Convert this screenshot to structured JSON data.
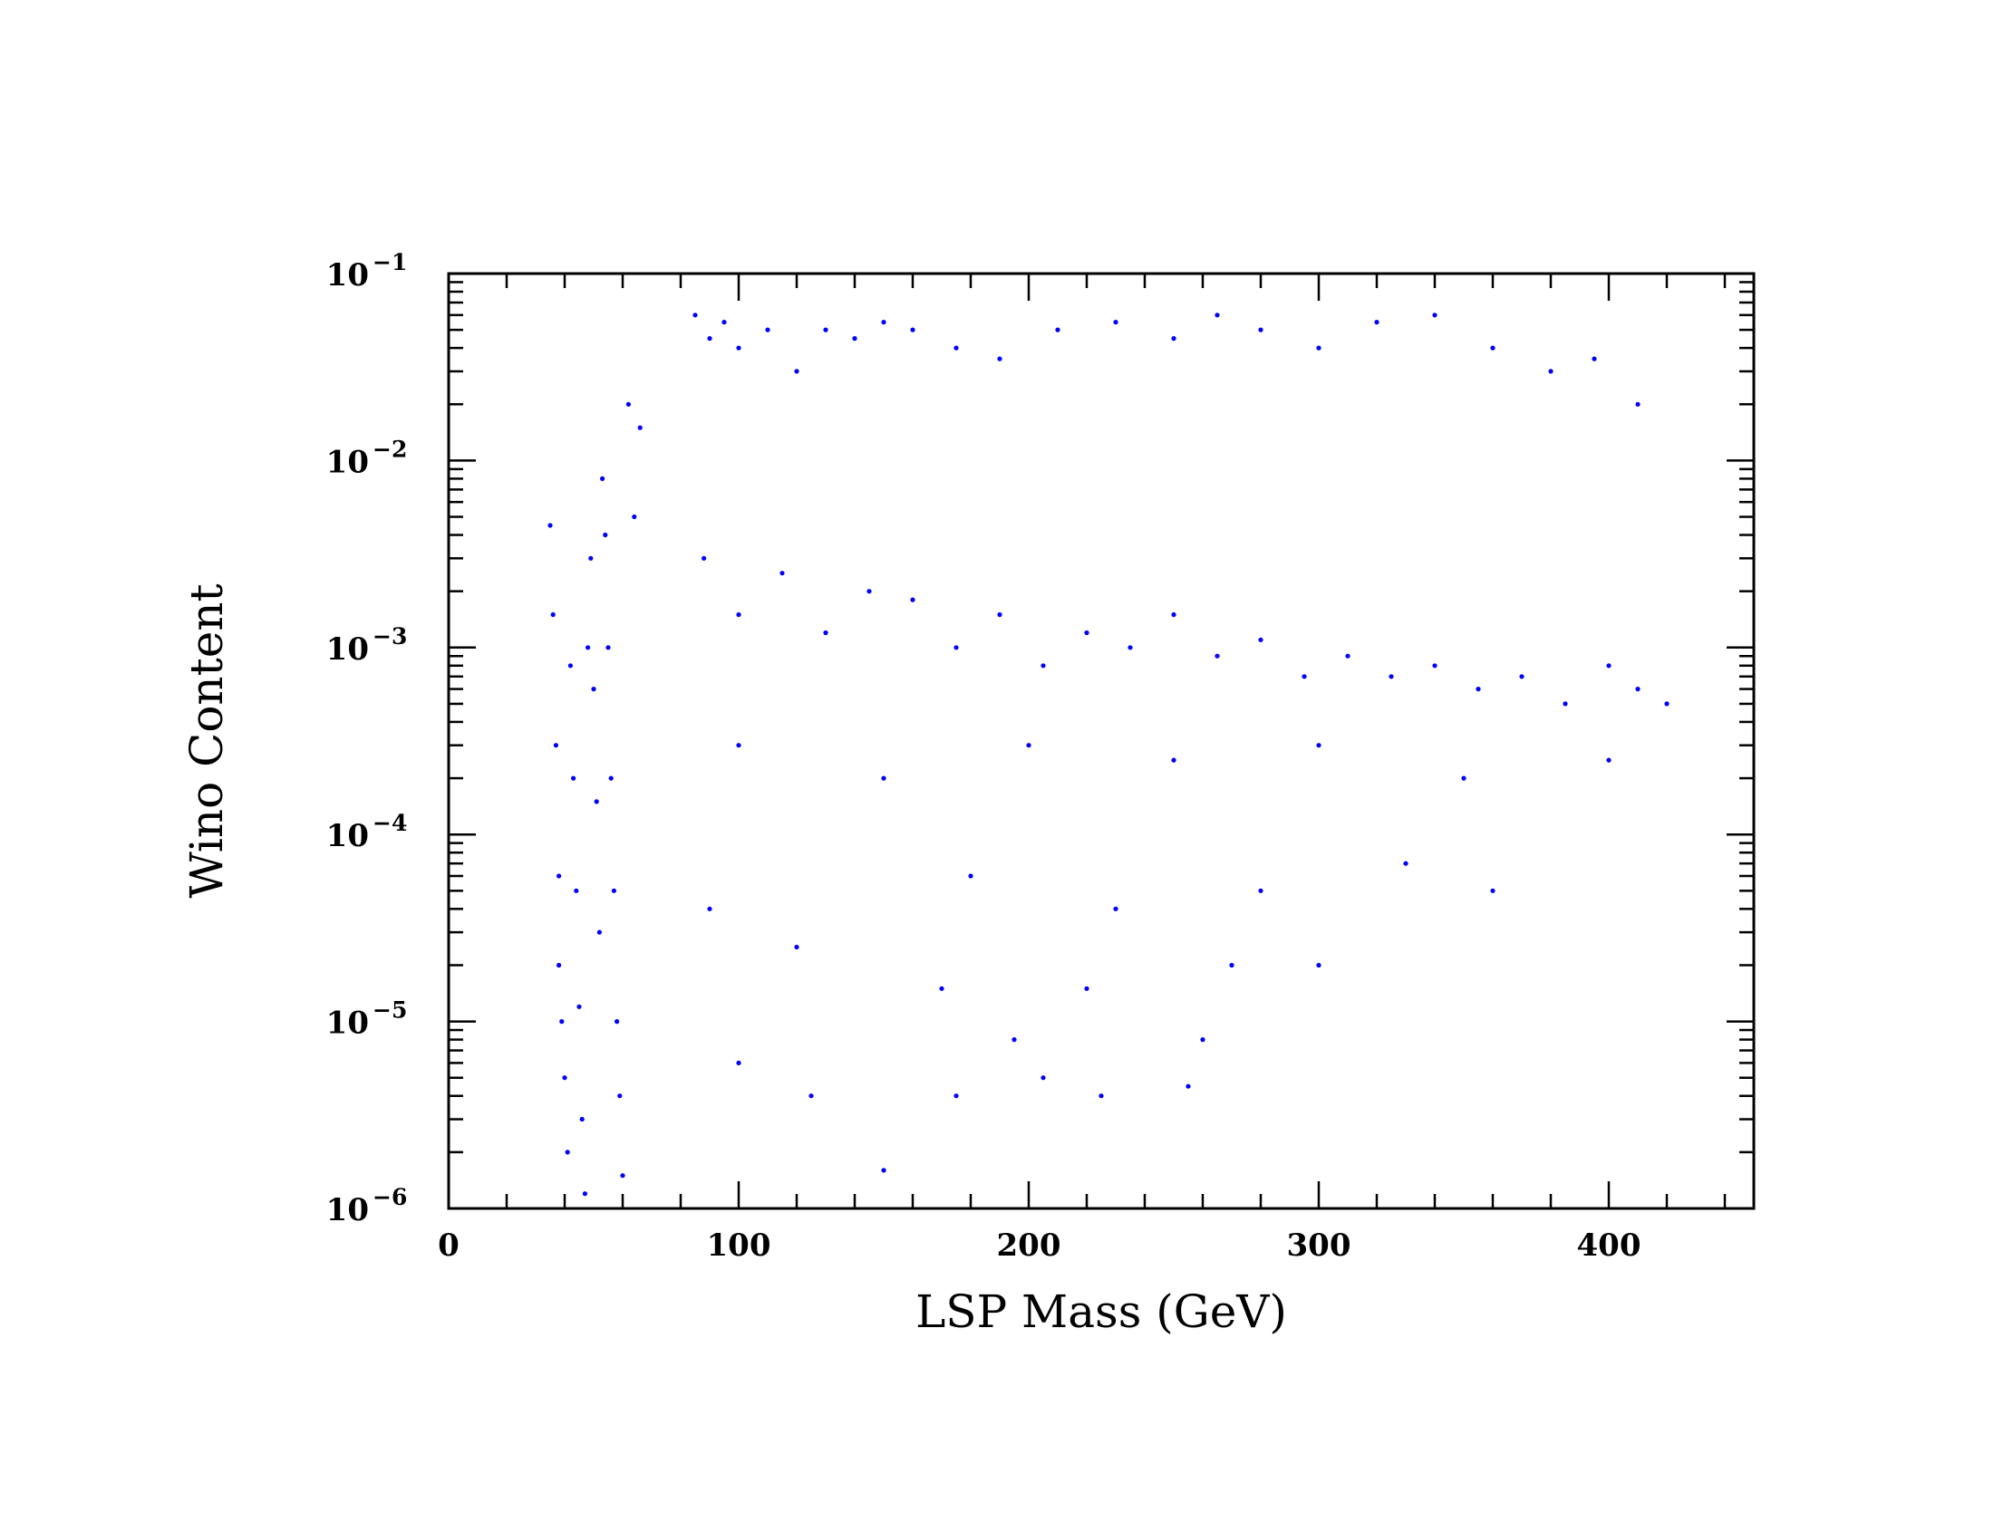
{
  "chart_data": {
    "type": "scatter",
    "title": "",
    "xlabel": "LSP Mass (GeV)",
    "ylabel": "Wino Content",
    "xlim": [
      0,
      450
    ],
    "ylim": [
      1e-06,
      0.1
    ],
    "yscale": "log",
    "grid": false,
    "marker_color": "#0000ff",
    "x_ticks": [
      {
        "value": 0,
        "label": "0"
      },
      {
        "value": 100,
        "label": "100"
      },
      {
        "value": 200,
        "label": "200"
      },
      {
        "value": 300,
        "label": "300"
      },
      {
        "value": 400,
        "label": "400"
      }
    ],
    "y_ticks": [
      {
        "value": 1e-06,
        "base": "10",
        "exp": "−6"
      },
      {
        "value": 1e-05,
        "base": "10",
        "exp": "−5"
      },
      {
        "value": 0.0001,
        "base": "10",
        "exp": "−4"
      },
      {
        "value": 0.001,
        "base": "10",
        "exp": "−3"
      },
      {
        "value": 0.01,
        "base": "10",
        "exp": "−2"
      },
      {
        "value": 0.1,
        "base": "10",
        "exp": "−1"
      }
    ],
    "series": [
      {
        "points": [
          [
            35,
            0.0045
          ],
          [
            36,
            0.0015
          ],
          [
            37,
            0.0003
          ],
          [
            38,
            6e-05
          ],
          [
            38,
            2e-05
          ],
          [
            39,
            1e-05
          ],
          [
            40,
            5e-06
          ],
          [
            41,
            2e-06
          ],
          [
            42,
            0.0008
          ],
          [
            43,
            0.0002
          ],
          [
            44,
            5e-05
          ],
          [
            45,
            1.2e-05
          ],
          [
            46,
            3e-06
          ],
          [
            47,
            1.2e-06
          ],
          [
            48,
            0.001
          ],
          [
            49,
            0.003
          ],
          [
            50,
            0.0006
          ],
          [
            51,
            0.00015
          ],
          [
            52,
            3e-05
          ],
          [
            53,
            0.008
          ],
          [
            54,
            0.004
          ],
          [
            55,
            0.001
          ],
          [
            56,
            0.0002
          ],
          [
            57,
            5e-05
          ],
          [
            58,
            1e-05
          ],
          [
            59,
            4e-06
          ],
          [
            60,
            1.5e-06
          ],
          [
            62,
            0.02
          ],
          [
            64,
            0.005
          ],
          [
            66,
            0.015
          ],
          [
            85,
            0.06
          ],
          [
            90,
            0.045
          ],
          [
            95,
            0.055
          ],
          [
            100,
            0.04
          ],
          [
            110,
            0.05
          ],
          [
            120,
            0.03
          ],
          [
            130,
            0.05
          ],
          [
            140,
            0.045
          ],
          [
            150,
            0.055
          ],
          [
            160,
            0.05
          ],
          [
            175,
            0.04
          ],
          [
            190,
            0.035
          ],
          [
            210,
            0.05
          ],
          [
            230,
            0.055
          ],
          [
            250,
            0.045
          ],
          [
            265,
            0.06
          ],
          [
            280,
            0.05
          ],
          [
            300,
            0.04
          ],
          [
            320,
            0.055
          ],
          [
            340,
            0.06
          ],
          [
            360,
            0.04
          ],
          [
            380,
            0.03
          ],
          [
            395,
            0.035
          ],
          [
            410,
            0.02
          ],
          [
            88,
            0.003
          ],
          [
            100,
            0.0015
          ],
          [
            115,
            0.0025
          ],
          [
            130,
            0.0012
          ],
          [
            145,
            0.002
          ],
          [
            160,
            0.0018
          ],
          [
            175,
            0.001
          ],
          [
            190,
            0.0015
          ],
          [
            205,
            0.0008
          ],
          [
            220,
            0.0012
          ],
          [
            235,
            0.001
          ],
          [
            250,
            0.0015
          ],
          [
            265,
            0.0009
          ],
          [
            280,
            0.0011
          ],
          [
            295,
            0.0007
          ],
          [
            310,
            0.0009
          ],
          [
            325,
            0.0007
          ],
          [
            340,
            0.0008
          ],
          [
            355,
            0.0006
          ],
          [
            370,
            0.0007
          ],
          [
            385,
            0.0005
          ],
          [
            400,
            0.0008
          ],
          [
            410,
            0.0006
          ],
          [
            420,
            0.0005
          ],
          [
            100,
            0.0003
          ],
          [
            150,
            0.0002
          ],
          [
            200,
            0.0003
          ],
          [
            250,
            0.00025
          ],
          [
            300,
            0.0003
          ],
          [
            350,
            0.0002
          ],
          [
            400,
            0.00025
          ],
          [
            180,
            6e-05
          ],
          [
            230,
            4e-05
          ],
          [
            280,
            5e-05
          ],
          [
            330,
            7e-05
          ],
          [
            360,
            5e-05
          ],
          [
            120,
            2.5e-05
          ],
          [
            170,
            1.5e-05
          ],
          [
            220,
            1.5e-05
          ],
          [
            270,
            2e-05
          ],
          [
            300,
            2e-05
          ],
          [
            100,
            6e-06
          ],
          [
            125,
            4e-06
          ],
          [
            175,
            4e-06
          ],
          [
            205,
            5e-06
          ],
          [
            225,
            4e-06
          ],
          [
            255,
            4.5e-06
          ],
          [
            150,
            1.6e-06
          ],
          [
            260,
            8e-06
          ],
          [
            195,
            8e-06
          ],
          [
            90,
            4e-05
          ]
        ]
      }
    ]
  }
}
